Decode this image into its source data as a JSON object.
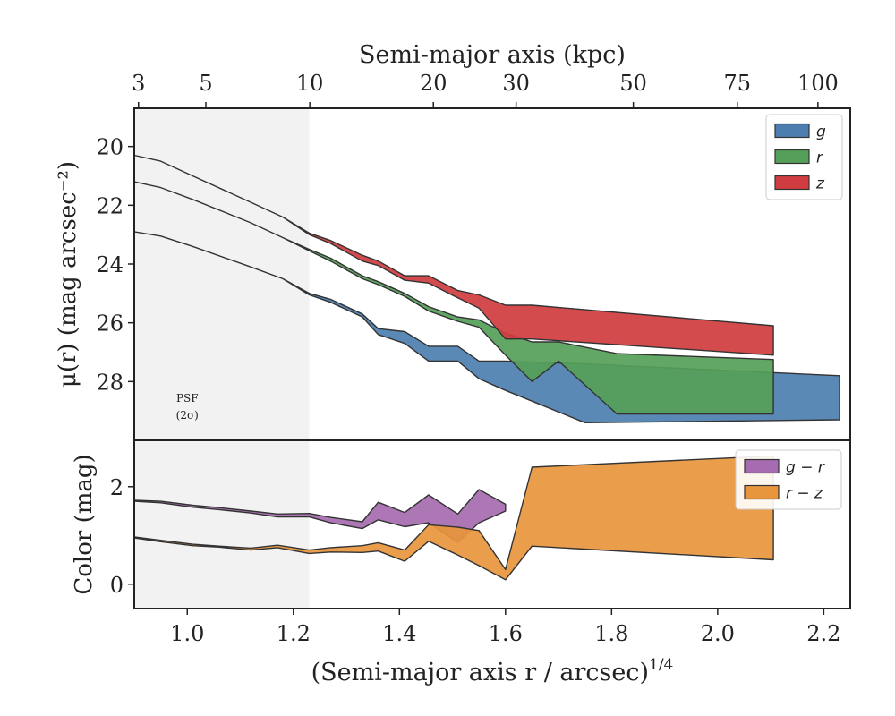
{
  "chart_data": {
    "type": "area",
    "top_axis": {
      "label": "Semi-major axis (kpc)",
      "ticks": [
        {
          "label": "3",
          "x": 0.908
        },
        {
          "label": "5",
          "x": 1.035
        },
        {
          "label": "10",
          "x": 1.231
        },
        {
          "label": "20",
          "x": 1.464
        },
        {
          "label": "30",
          "x": 1.62
        },
        {
          "label": "50",
          "x": 1.841
        },
        {
          "label": "75",
          "x": 2.037
        },
        {
          "label": "100",
          "x": 2.189
        }
      ]
    },
    "xlabel": "(Semi-major axis r / arcsec)",
    "xlabel_sup": "1/4",
    "xlim": [
      0.9,
      2.25
    ],
    "xticks": [
      "1.0",
      "1.2",
      "1.4",
      "1.6",
      "1.8",
      "2.0",
      "2.2"
    ],
    "psf_region": {
      "x_max": 1.23,
      "label_line1": "PSF",
      "label_line2": "(2σ)"
    },
    "panels": [
      {
        "id": "surface-brightness",
        "ylabel": "μ(r) (mag arcsec⁻²)",
        "ylim_inverted": [
          30.0,
          18.7
        ],
        "yticks": [
          "20",
          "22",
          "24",
          "26",
          "28"
        ],
        "legend_position": "top-right",
        "series": [
          {
            "name": "g",
            "color": "#4c7faf",
            "x": [
              0.9,
              0.95,
              1.01,
              1.12,
              1.18,
              1.23,
              1.27,
              1.33,
              1.36,
              1.41,
              1.455,
              1.51,
              1.55,
              1.6,
              1.75,
              2.23
            ],
            "lower": [
              22.9,
              23.05,
              23.4,
              24.1,
              24.5,
              25.0,
              25.2,
              25.7,
              26.2,
              26.3,
              26.8,
              26.8,
              27.3,
              27.3,
              27.4,
              27.8
            ],
            "upper": [
              22.9,
              23.05,
              23.4,
              24.1,
              24.5,
              25.05,
              25.3,
              25.8,
              26.4,
              26.7,
              27.3,
              27.3,
              27.9,
              28.3,
              29.4,
              29.3
            ]
          },
          {
            "name": "r",
            "color": "#55a058",
            "x": [
              0.9,
              0.95,
              1.01,
              1.12,
              1.18,
              1.23,
              1.27,
              1.33,
              1.36,
              1.41,
              1.455,
              1.51,
              1.55,
              1.6,
              1.65,
              1.7,
              1.81,
              2.105
            ],
            "lower": [
              21.2,
              21.4,
              21.8,
              22.6,
              23.1,
              23.5,
              23.8,
              24.4,
              24.6,
              25.0,
              25.45,
              25.8,
              25.9,
              26.35,
              26.65,
              26.65,
              27.05,
              27.25
            ],
            "upper": [
              21.2,
              21.4,
              21.8,
              22.6,
              23.1,
              23.55,
              23.9,
              24.5,
              24.7,
              25.1,
              25.6,
              25.95,
              26.15,
              27.1,
              28.0,
              27.3,
              29.1,
              29.1
            ]
          },
          {
            "name": "z",
            "color": "#d03c3f",
            "x": [
              0.9,
              0.95,
              1.01,
              1.12,
              1.18,
              1.23,
              1.27,
              1.33,
              1.36,
              1.41,
              1.455,
              1.51,
              1.55,
              1.6,
              1.65,
              2.105
            ],
            "lower": [
              20.3,
              20.5,
              21.0,
              21.9,
              22.4,
              22.95,
              23.2,
              23.7,
              23.9,
              24.4,
              24.4,
              24.9,
              25.05,
              25.4,
              25.4,
              26.1
            ],
            "upper": [
              20.3,
              20.5,
              21.0,
              21.9,
              22.4,
              23.0,
              23.3,
              23.9,
              24.05,
              24.55,
              24.65,
              25.15,
              25.5,
              26.55,
              26.55,
              27.1
            ]
          }
        ]
      },
      {
        "id": "color",
        "ylabel": "Color (mag)",
        "ylim": [
          -0.5,
          2.95
        ],
        "yticks": [
          "0",
          "2"
        ],
        "legend_position": "top-right",
        "series": [
          {
            "name": "g − r",
            "color": "#a66bb0",
            "x": [
              0.9,
              0.95,
              1.01,
              1.06,
              1.12,
              1.17,
              1.23,
              1.27,
              1.33,
              1.36,
              1.41,
              1.455,
              1.51,
              1.55,
              1.6
            ],
            "upper": [
              1.72,
              1.7,
              1.62,
              1.57,
              1.5,
              1.44,
              1.45,
              1.37,
              1.28,
              1.68,
              1.47,
              1.83,
              1.44,
              1.94,
              1.64
            ],
            "lower": [
              1.7,
              1.67,
              1.58,
              1.53,
              1.46,
              1.38,
              1.38,
              1.26,
              1.14,
              1.32,
              1.18,
              1.26,
              0.86,
              1.26,
              1.5
            ]
          },
          {
            "name": "r − z",
            "color": "#e8963d",
            "x": [
              0.9,
              0.95,
              1.01,
              1.06,
              1.12,
              1.17,
              1.23,
              1.27,
              1.33,
              1.36,
              1.41,
              1.455,
              1.51,
              1.55,
              1.6,
              1.65,
              2.105
            ],
            "upper": [
              0.97,
              0.9,
              0.82,
              0.78,
              0.74,
              0.8,
              0.7,
              0.75,
              0.79,
              0.85,
              0.7,
              1.22,
              1.17,
              1.1,
              0.3,
              2.4,
              2.63
            ],
            "lower": [
              0.95,
              0.87,
              0.79,
              0.76,
              0.7,
              0.75,
              0.63,
              0.66,
              0.65,
              0.68,
              0.47,
              0.88,
              0.6,
              0.38,
              0.09,
              0.78,
              0.5
            ]
          }
        ]
      }
    ]
  }
}
